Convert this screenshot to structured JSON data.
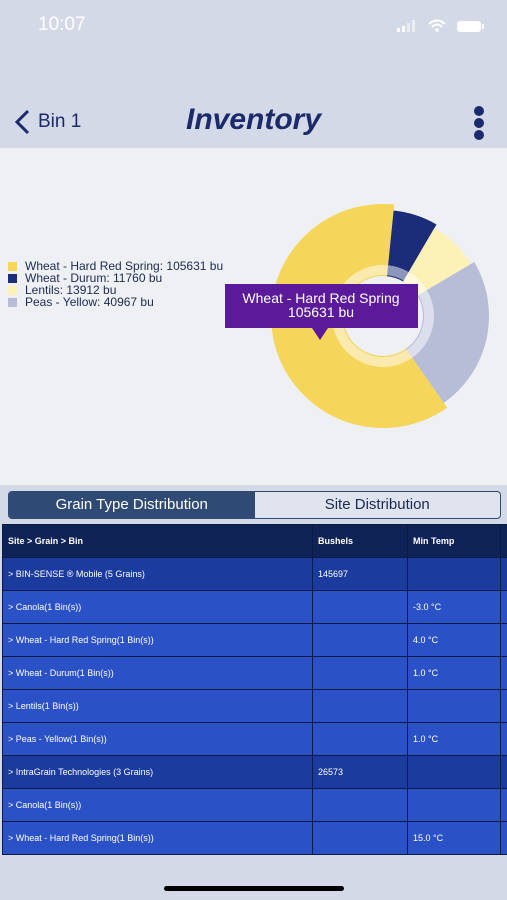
{
  "status_bar": {
    "time": "10:07"
  },
  "header": {
    "back": "Bin 1",
    "title": "Inventory"
  },
  "chart_data": {
    "type": "pie",
    "donut": true,
    "categories": [
      "Wheat - Hard Red Spring",
      "Wheat - Durum",
      "Lentils",
      "Peas - Yellow"
    ],
    "values": [
      105631,
      11760,
      13912,
      40967
    ],
    "value_labels": [
      "105631 bu",
      "11760 bu",
      "13912 bu",
      "40967 bu"
    ],
    "legend_labels": [
      "Wheat - Hard Red Spring: 105631 bu",
      "Wheat - Durum: 11760 bu",
      "Lentils: 13912 bu",
      "Peas - Yellow: 40967 bu"
    ],
    "colors": [
      "#f5d55a",
      "#1b2d78",
      "#fcf2b8",
      "#b7bdd6"
    ],
    "legend": "left",
    "tooltip_index": 0
  },
  "tabs": [
    "Grain Type Distribution",
    "Site Distribution"
  ],
  "table": {
    "columns": [
      "Site > Grain > Bin",
      "Bushels",
      "Min Temp"
    ],
    "rows": [
      {
        "site": "> BIN-SENSE ® Mobile  (5 Grains)",
        "bushels": 145697
      },
      {
        "grain": "> Canola(1 Bin(s))",
        "min_temp": "-3.0 °C"
      },
      {
        "grain": "> Wheat - Hard Red Spring(1 Bin(s))",
        "min_temp": "4.0 °C"
      },
      {
        "grain": "> Wheat - Durum(1 Bin(s))",
        "min_temp": "1.0 °C"
      },
      {
        "grain": "> Lentils(1 Bin(s))"
      },
      {
        "grain": "> Peas - Yellow(1 Bin(s))",
        "min_temp": "1.0 °C"
      },
      {
        "site": "> IntraGrain Technologies (3 Grains)",
        "bushels": 26573
      },
      {
        "grain": "> Canola(1 Bin(s))"
      },
      {
        "grain": "> Wheat - Hard Red Spring(1 Bin(s))",
        "min_temp": "15.0 °C"
      }
    ]
  }
}
